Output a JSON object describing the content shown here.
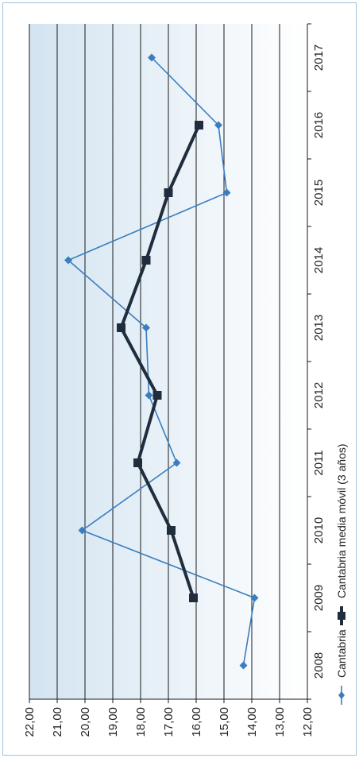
{
  "chart_data": {
    "type": "line",
    "orientation": "rotated-90",
    "title": "",
    "xlabel": "",
    "ylabel": "",
    "categories": [
      "2008",
      "2009",
      "2010",
      "2011",
      "2012",
      "2013",
      "2014",
      "2015",
      "2016",
      "2017"
    ],
    "ylim": [
      12,
      22
    ],
    "y_ticks": [
      "12,00",
      "13,00",
      "14,00",
      "15,00",
      "16,00",
      "17,00",
      "18,00",
      "19,00",
      "20,00",
      "21,00",
      "22,00"
    ],
    "grid": true,
    "legend_position": "right",
    "series": [
      {
        "name": "Cantabria",
        "values": [
          14.3,
          13.9,
          20.1,
          16.7,
          17.7,
          17.8,
          20.6,
          14.9,
          15.2,
          17.6
        ],
        "color": "#3a7ebf",
        "marker": "diamond"
      },
      {
        "name": "Cantabria media móvil (3 años)",
        "values": [
          null,
          16.1,
          16.9,
          18.1,
          17.4,
          18.7,
          17.8,
          17.0,
          15.9,
          null
        ],
        "color": "#1f2d3d",
        "marker": "square"
      }
    ]
  }
}
